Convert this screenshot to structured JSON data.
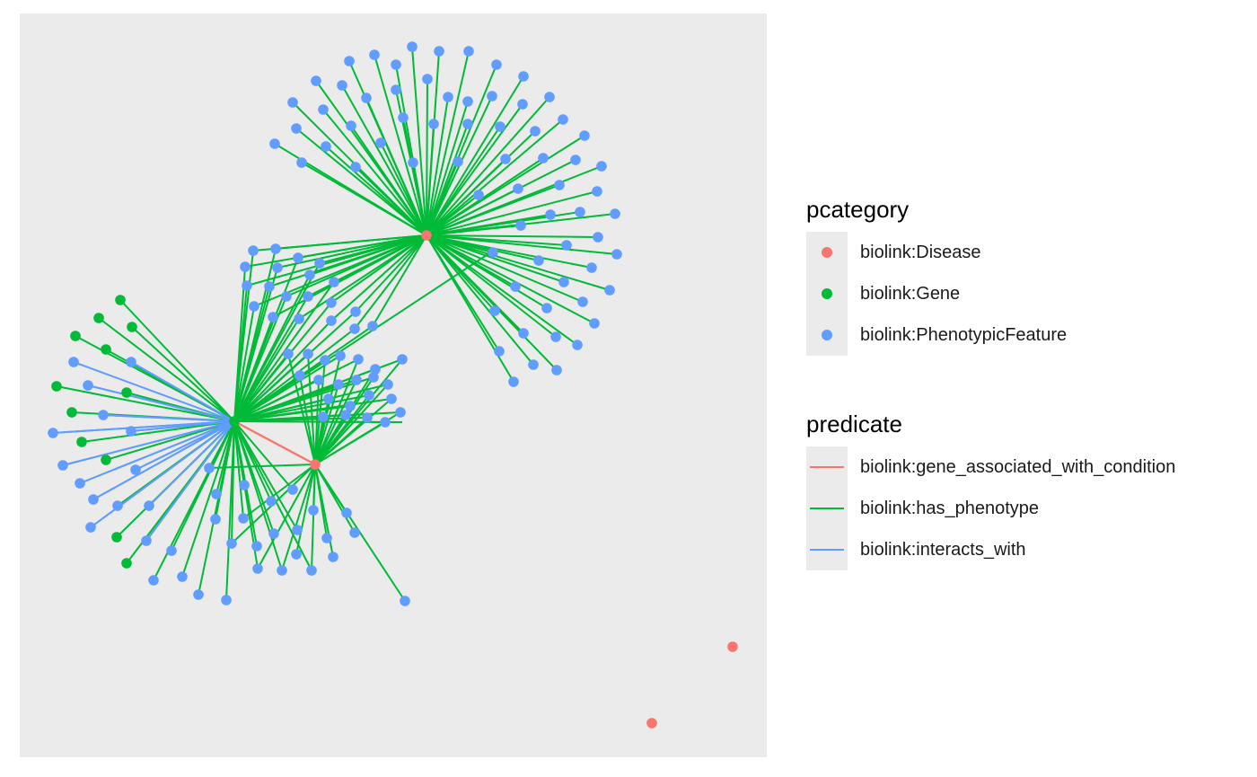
{
  "colors": {
    "disease": "#f8766d",
    "gene": "#00ba38",
    "phenotype": "#619cff",
    "panel": "#ebebeb"
  },
  "legend_pcategory": {
    "title": "pcategory",
    "items": [
      {
        "label": "biolink:Disease",
        "color": "#f8766d"
      },
      {
        "label": "biolink:Gene",
        "color": "#00ba38"
      },
      {
        "label": "biolink:PhenotypicFeature",
        "color": "#619cff"
      }
    ]
  },
  "legend_predicate": {
    "title": "predicate",
    "items": [
      {
        "label": "biolink:gene_associated_with_condition",
        "color": "#f8766d"
      },
      {
        "label": "biolink:has_phenotype",
        "color": "#00ba38"
      },
      {
        "label": "biolink:interacts_with",
        "color": "#619cff"
      }
    ]
  }
}
